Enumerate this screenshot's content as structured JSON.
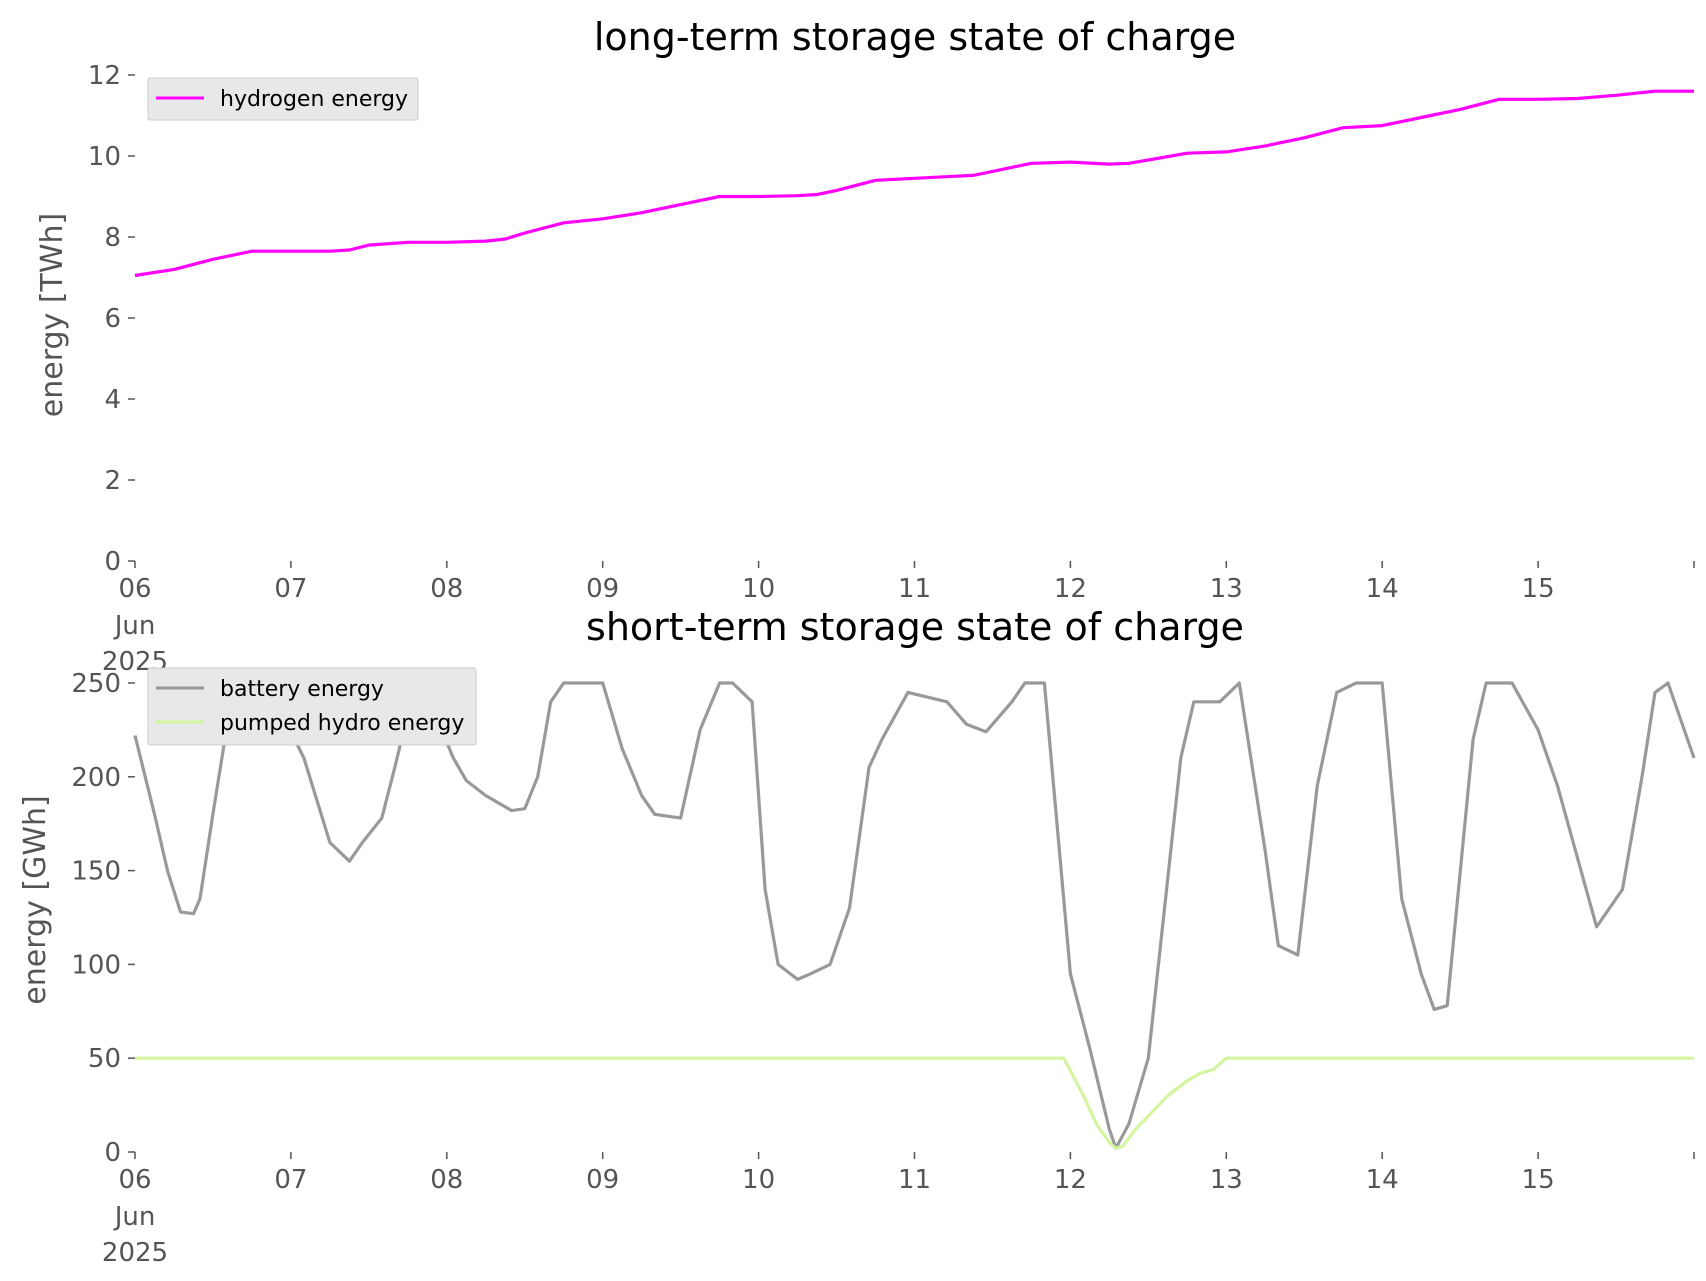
{
  "colors": {
    "hydrogen": "#ff00ff",
    "battery": "#999999",
    "pumped_hydro": "#d4f5a0",
    "legend_bg": "#e8e8e8",
    "tick_text": "#555555"
  },
  "x_ticks": [
    {
      "day": 0,
      "label": "06",
      "sub1": "Jun",
      "sub2": "2025"
    },
    {
      "day": 1,
      "label": "07",
      "sub1": "",
      "sub2": ""
    },
    {
      "day": 2,
      "label": "08",
      "sub1": "",
      "sub2": ""
    },
    {
      "day": 3,
      "label": "09",
      "sub1": "",
      "sub2": ""
    },
    {
      "day": 4,
      "label": "10",
      "sub1": "",
      "sub2": ""
    },
    {
      "day": 5,
      "label": "11",
      "sub1": "",
      "sub2": ""
    },
    {
      "day": 6,
      "label": "12",
      "sub1": "",
      "sub2": ""
    },
    {
      "day": 7,
      "label": "13",
      "sub1": "",
      "sub2": ""
    },
    {
      "day": 8,
      "label": "14",
      "sub1": "",
      "sub2": ""
    },
    {
      "day": 9,
      "label": "15",
      "sub1": "",
      "sub2": ""
    },
    {
      "day": 10,
      "label": "",
      "sub1": "",
      "sub2": ""
    }
  ],
  "chart_data": [
    {
      "type": "line",
      "title": "long-term storage state of charge",
      "xlabel": "",
      "ylabel": "energy [TWh]",
      "xlim": [
        "2025-06-06",
        "2025-06-16"
      ],
      "ylim": [
        0,
        12
      ],
      "yticks": [
        0,
        2,
        4,
        6,
        8,
        10,
        12
      ],
      "grid": false,
      "legend": "top-left",
      "series": [
        {
          "name": "hydrogen energy",
          "color": "#ff00ff",
          "x": [
            "2025-06-06 00:00",
            "2025-06-06 06:00",
            "2025-06-06 12:00",
            "2025-06-06 18:00",
            "2025-06-07 00:00",
            "2025-06-07 06:00",
            "2025-06-07 09:00",
            "2025-06-07 12:00",
            "2025-06-07 18:00",
            "2025-06-08 00:00",
            "2025-06-08 06:00",
            "2025-06-08 09:00",
            "2025-06-08 12:00",
            "2025-06-08 18:00",
            "2025-06-09 00:00",
            "2025-06-09 06:00",
            "2025-06-09 12:00",
            "2025-06-09 18:00",
            "2025-06-10 00:00",
            "2025-06-10 06:00",
            "2025-06-10 09:00",
            "2025-06-10 12:00",
            "2025-06-10 18:00",
            "2025-06-11 00:00",
            "2025-06-11 06:00",
            "2025-06-11 09:00",
            "2025-06-11 12:00",
            "2025-06-11 18:00",
            "2025-06-12 00:00",
            "2025-06-12 06:00",
            "2025-06-12 09:00",
            "2025-06-12 12:00",
            "2025-06-12 18:00",
            "2025-06-13 00:00",
            "2025-06-13 06:00",
            "2025-06-13 12:00",
            "2025-06-13 18:00",
            "2025-06-14 00:00",
            "2025-06-14 06:00",
            "2025-06-14 12:00",
            "2025-06-14 18:00",
            "2025-06-15 00:00",
            "2025-06-15 06:00",
            "2025-06-15 12:00",
            "2025-06-15 18:00",
            "2025-06-16 00:00"
          ],
          "values": [
            7.05,
            7.2,
            7.45,
            7.65,
            7.65,
            7.65,
            7.68,
            7.8,
            7.87,
            7.87,
            7.9,
            7.95,
            8.1,
            8.35,
            8.45,
            8.6,
            8.8,
            9.0,
            9.0,
            9.02,
            9.05,
            9.15,
            9.4,
            9.45,
            9.5,
            9.52,
            9.62,
            9.82,
            9.85,
            9.8,
            9.82,
            9.9,
            10.07,
            10.1,
            10.25,
            10.45,
            10.7,
            10.75,
            10.95,
            11.15,
            11.4,
            11.4,
            11.42,
            11.5,
            11.6,
            11.6
          ]
        }
      ]
    },
    {
      "type": "line",
      "title": "short-term storage state of charge",
      "xlabel": "",
      "ylabel": "energy [GWh]",
      "xlim": [
        "2025-06-06",
        "2025-06-16"
      ],
      "ylim": [
        0,
        250
      ],
      "yticks": [
        0,
        50,
        100,
        150,
        200,
        250
      ],
      "grid": false,
      "legend": "top-left",
      "series": [
        {
          "name": "battery energy",
          "color": "#999999",
          "x": [
            "2025-06-06 00:00",
            "2025-06-06 03:00",
            "2025-06-06 05:00",
            "2025-06-06 07:00",
            "2025-06-06 09:00",
            "2025-06-06 10:00",
            "2025-06-06 12:00",
            "2025-06-06 15:00",
            "2025-06-06 18:00",
            "2025-06-06 21:00",
            "2025-06-07 02:00",
            "2025-06-07 06:00",
            "2025-06-07 09:00",
            "2025-06-07 11:00",
            "2025-06-07 14:00",
            "2025-06-07 16:00",
            "2025-06-07 19:00",
            "2025-06-07 20:00",
            "2025-06-07 22:00",
            "2025-06-08 01:00",
            "2025-06-08 03:00",
            "2025-06-08 06:00",
            "2025-06-08 10:00",
            "2025-06-08 12:00",
            "2025-06-08 14:00",
            "2025-06-08 16:00",
            "2025-06-08 18:00",
            "2025-06-08 22:00",
            "2025-06-09 00:00",
            "2025-06-09 03:00",
            "2025-06-09 06:00",
            "2025-06-09 08:00",
            "2025-06-09 12:00",
            "2025-06-09 15:00",
            "2025-06-09 18:00",
            "2025-06-09 20:00",
            "2025-06-09 23:00",
            "2025-06-10 01:00",
            "2025-06-10 03:00",
            "2025-06-10 06:00",
            "2025-06-10 08:00",
            "2025-06-10 11:00",
            "2025-06-10 14:00",
            "2025-06-10 17:00",
            "2025-06-10 19:00",
            "2025-06-10 23:00",
            "2025-06-11 05:00",
            "2025-06-11 08:00",
            "2025-06-11 11:00",
            "2025-06-11 15:00",
            "2025-06-11 17:00",
            "2025-06-11 20:00",
            "2025-06-12 00:00",
            "2025-06-12 03:00",
            "2025-06-12 06:00",
            "2025-06-12 07:00",
            "2025-06-12 09:00",
            "2025-06-12 12:00",
            "2025-06-12 17:00",
            "2025-06-12 19:00",
            "2025-06-12 23:00",
            "2025-06-13 02:00",
            "2025-06-13 06:00",
            "2025-06-13 08:00",
            "2025-06-13 11:00",
            "2025-06-13 14:00",
            "2025-06-13 17:00",
            "2025-06-13 20:00",
            "2025-06-14 00:00",
            "2025-06-14 03:00",
            "2025-06-14 06:00",
            "2025-06-14 08:00",
            "2025-06-14 10:00",
            "2025-06-14 14:00",
            "2025-06-14 16:00",
            "2025-06-14 20:00",
            "2025-06-15 00:00",
            "2025-06-15 03:00",
            "2025-06-15 05:00",
            "2025-06-15 09:00",
            "2025-06-15 13:00",
            "2025-06-15 16:00",
            "2025-06-15 18:00",
            "2025-06-15 20:00",
            "2025-06-16 00:00"
          ],
          "values": [
            222,
            180,
            150,
            128,
            127,
            135,
            180,
            245,
            250,
            245,
            210,
            165,
            155,
            165,
            178,
            205,
            248,
            250,
            235,
            210,
            198,
            190,
            182,
            183,
            200,
            240,
            250,
            250,
            250,
            215,
            190,
            180,
            178,
            225,
            250,
            250,
            240,
            140,
            100,
            92,
            95,
            100,
            130,
            205,
            220,
            245,
            240,
            228,
            224,
            240,
            250,
            250,
            95,
            55,
            12,
            2,
            15,
            50,
            210,
            240,
            240,
            250,
            160,
            110,
            105,
            195,
            245,
            250,
            250,
            135,
            95,
            76,
            78,
            220,
            250,
            250,
            225,
            195,
            170,
            120,
            140,
            200,
            245,
            250,
            210
          ],
          "legend_points": "approx"
        },
        {
          "name": "pumped hydro energy",
          "color": "#d4f5a0",
          "x": [
            "2025-06-06 00:00",
            "2025-06-11 23:00",
            "2025-06-12 02:00",
            "2025-06-12 04:00",
            "2025-06-12 06:00",
            "2025-06-12 07:00",
            "2025-06-12 08:00",
            "2025-06-12 10:00",
            "2025-06-12 15:00",
            "2025-06-12 18:00",
            "2025-06-12 20:00",
            "2025-06-12 22:00",
            "2025-06-13 00:00",
            "2025-06-16 00:00"
          ],
          "values": [
            50,
            50,
            30,
            15,
            5,
            2,
            3,
            12,
            30,
            38,
            42,
            44,
            50,
            50
          ]
        }
      ]
    }
  ]
}
